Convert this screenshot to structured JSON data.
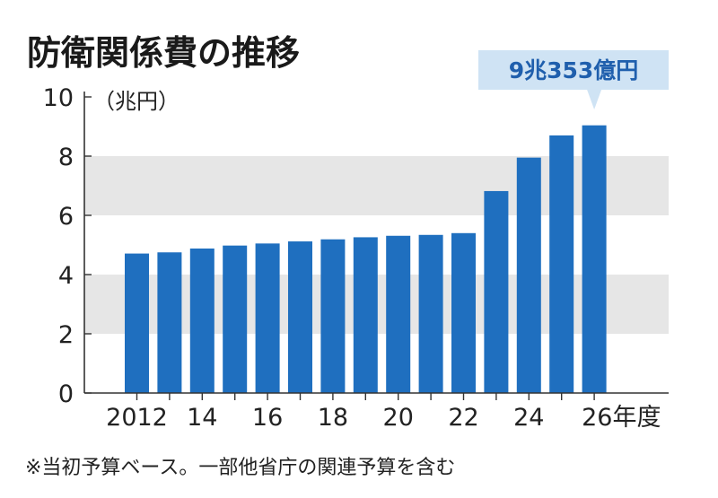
{
  "title": "防衛関係費の推移",
  "unit_label": "（兆円）",
  "note": "※当初予算ベース。一部他省庁の関連予算を含む",
  "callout": "9兆353億円",
  "colors": {
    "bar": "#1f6fbf",
    "band": "#e6e6e6",
    "axis": "#333333",
    "callout_bg": "#cfe3f4",
    "callout_text": "#1f5fad"
  },
  "chart_data": {
    "type": "bar",
    "categories": [
      "2012",
      "2013",
      "2014",
      "2015",
      "2016",
      "2017",
      "2018",
      "2019",
      "2020",
      "2021",
      "2022",
      "2023",
      "2024",
      "2025",
      "2026"
    ],
    "values": [
      4.71,
      4.75,
      4.88,
      4.98,
      5.05,
      5.12,
      5.19,
      5.26,
      5.31,
      5.34,
      5.4,
      6.82,
      7.95,
      8.7,
      9.04
    ],
    "x_tick_labels": [
      "2012",
      "14",
      "16",
      "18",
      "20",
      "22",
      "24",
      "26年度"
    ],
    "y_ticks": [
      "0",
      "2",
      "4",
      "6",
      "8",
      "10"
    ],
    "ylim": [
      0,
      10
    ],
    "grid_bands": [
      [
        2,
        4
      ],
      [
        6,
        8
      ]
    ],
    "annotations": [
      {
        "category": "2026",
        "text": "9兆353億円"
      }
    ]
  }
}
